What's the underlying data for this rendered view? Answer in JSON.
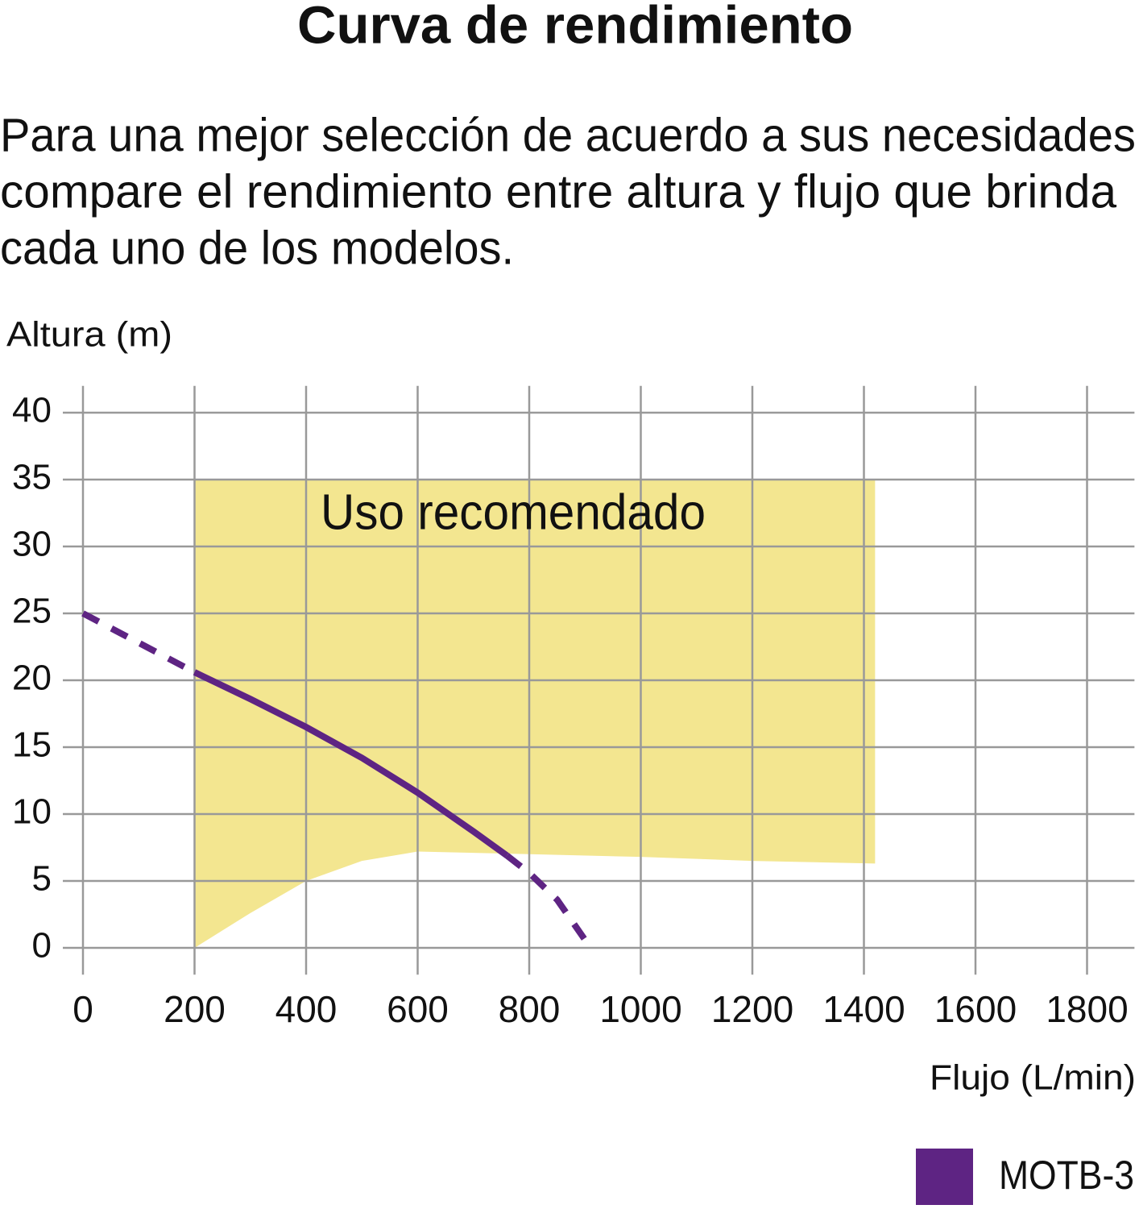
{
  "chart_data": {
    "type": "line",
    "title": "Curva de rendimiento",
    "subtitle": [
      "Para una mejor selección de acuerdo a sus necesidades",
      "compare el rendimiento entre altura y flujo que brinda",
      "cada uno de los modelos."
    ],
    "y_label": "Altura (m)",
    "x_label": "Flujo (L/min)",
    "xlim": [
      0,
      1885
    ],
    "ylim": [
      -2,
      42
    ],
    "xticks": [
      0,
      200,
      400,
      600,
      800,
      1000,
      1200,
      1400,
      1600,
      1800
    ],
    "yticks": [
      0,
      5,
      10,
      15,
      20,
      25,
      30,
      35,
      40
    ],
    "grid": true,
    "region": {
      "label": "Uso recomendado",
      "color": "#f3e690",
      "x": [
        200,
        300,
        400,
        500,
        600,
        800,
        1000,
        1200,
        1420
      ],
      "upper": [
        35,
        35,
        35,
        35,
        35,
        35,
        35,
        35,
        35
      ],
      "lower": [
        0,
        2.6,
        5,
        6.5,
        7.2,
        7.0,
        6.8,
        6.5,
        6.3
      ]
    },
    "solid_x_range": [
      200,
      760
    ],
    "series": [
      {
        "name": "MOTB-3",
        "color": "#5e2483",
        "x": [
          0,
          100,
          200,
          300,
          400,
          500,
          600,
          700,
          760,
          800,
          850,
          910
        ],
        "values": [
          25,
          22.8,
          20.6,
          18.6,
          16.5,
          14.2,
          11.6,
          8.7,
          6.9,
          5.6,
          3.6,
          0
        ]
      }
    ],
    "legend": "bottom-right"
  }
}
